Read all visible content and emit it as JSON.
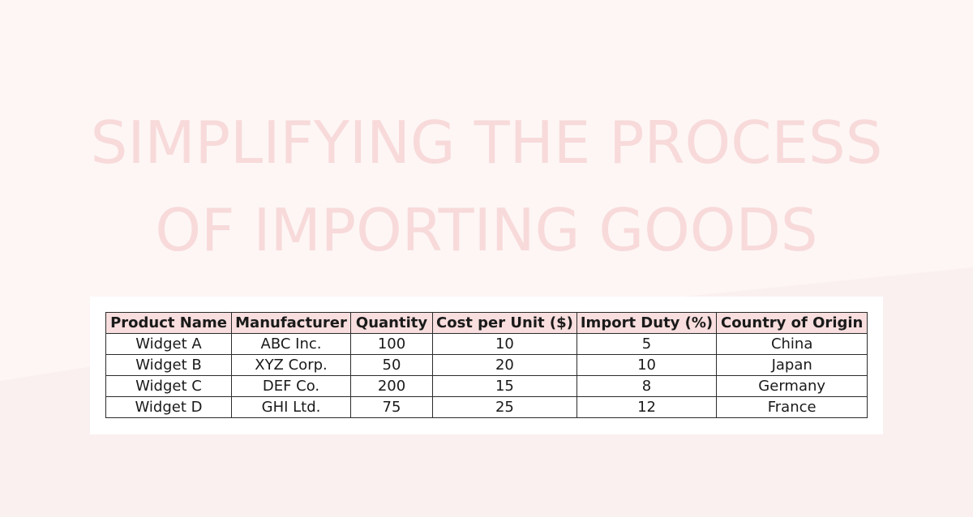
{
  "title": {
    "line1": "SIMPLIFYING THE PROCESS",
    "line2": "OF IMPORTING GOODS"
  },
  "colors": {
    "background": "#fdf6f5",
    "title": "#f8dada",
    "header_fill": "#f8dede",
    "border": "#2b2b2b"
  },
  "table": {
    "headers": [
      "Product Name",
      "Manufacturer",
      "Quantity",
      "Cost per Unit ($)",
      "Import Duty (%)",
      "Country of Origin"
    ],
    "rows": [
      [
        "Widget A",
        "ABC Inc.",
        "100",
        "10",
        "5",
        "China"
      ],
      [
        "Widget B",
        "XYZ Corp.",
        "50",
        "20",
        "10",
        "Japan"
      ],
      [
        "Widget C",
        "DEF Co.",
        "200",
        "15",
        "8",
        "Germany"
      ],
      [
        "Widget D",
        "GHI Ltd.",
        "75",
        "25",
        "12",
        "France"
      ]
    ]
  }
}
